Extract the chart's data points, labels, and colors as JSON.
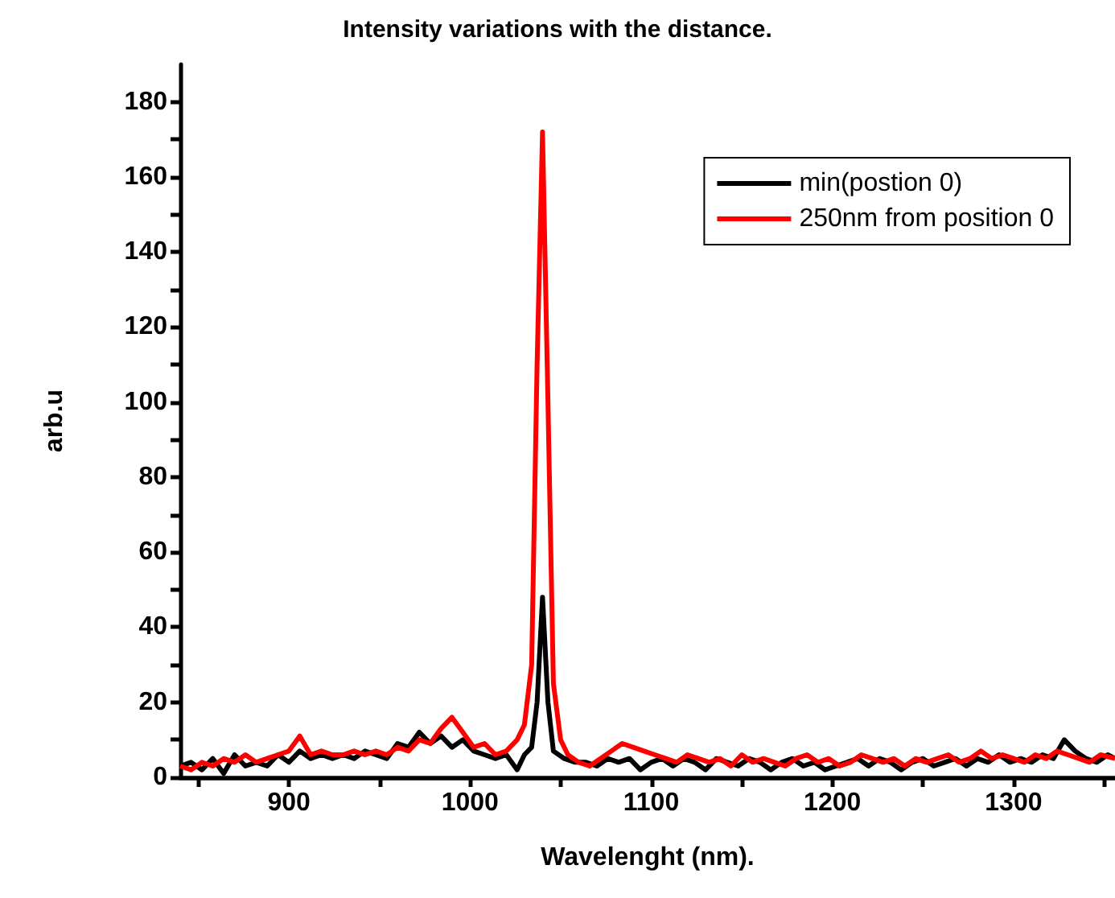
{
  "chart_data": {
    "type": "line",
    "title": "Intensity variations with the distance.",
    "xlabel": "Wavelenght (nm).",
    "ylabel": "arb.u",
    "xlim": [
      840,
      1356
    ],
    "ylim": [
      0,
      190
    ],
    "xticks": [
      {
        "value": 850,
        "label": null
      },
      900,
      {
        "value": 950,
        "label": null
      },
      1000,
      {
        "value": 1050,
        "label": null
      },
      1100,
      {
        "value": 1150,
        "label": null
      },
      1200,
      {
        "value": 1250,
        "label": null
      },
      1300,
      {
        "value": 1350,
        "label": null
      }
    ],
    "yticks": [
      0,
      {
        "value": 10,
        "label": null
      },
      20,
      {
        "value": 30,
        "label": null
      },
      40,
      {
        "value": 50,
        "label": null
      },
      60,
      {
        "value": 70,
        "label": null
      },
      80,
      {
        "value": 90,
        "label": null
      },
      100,
      {
        "value": 110,
        "label": null
      },
      120,
      {
        "value": 130,
        "label": null
      },
      140,
      {
        "value": 150,
        "label": null
      },
      160,
      {
        "value": 170,
        "label": null
      },
      180
    ],
    "grid": false,
    "legend": "top right",
    "marker": "none",
    "line_style": "solid",
    "series": [
      {
        "name": "min(postion 0)",
        "color": "#000000",
        "x": [
          840,
          846,
          852,
          858,
          864,
          870,
          876,
          882,
          888,
          894,
          900,
          906,
          912,
          918,
          924,
          930,
          936,
          942,
          948,
          954,
          960,
          966,
          972,
          978,
          984,
          990,
          996,
          1002,
          1008,
          1014,
          1020,
          1026,
          1030,
          1034,
          1037,
          1040,
          1043,
          1046,
          1052,
          1058,
          1064,
          1070,
          1076,
          1082,
          1088,
          1094,
          1100,
          1106,
          1112,
          1118,
          1124,
          1130,
          1136,
          1142,
          1148,
          1154,
          1160,
          1166,
          1172,
          1178,
          1184,
          1190,
          1196,
          1202,
          1208,
          1214,
          1220,
          1226,
          1232,
          1238,
          1244,
          1250,
          1256,
          1262,
          1268,
          1274,
          1280,
          1286,
          1292,
          1298,
          1304,
          1310,
          1316,
          1322,
          1328,
          1334,
          1340,
          1346,
          1352,
          1356
        ],
        "values": [
          3,
          4,
          2,
          5,
          1,
          6,
          3,
          4,
          3,
          6,
          4,
          7,
          5,
          6,
          5,
          6,
          5,
          7,
          6,
          5,
          9,
          8,
          12,
          9,
          11,
          8,
          10,
          7,
          6,
          5,
          6,
          2,
          6,
          8,
          20,
          48,
          20,
          7,
          5,
          4,
          4,
          3,
          5,
          4,
          5,
          2,
          4,
          5,
          3,
          5,
          4,
          2,
          5,
          4,
          3,
          5,
          4,
          2,
          4,
          5,
          3,
          4,
          2,
          3,
          4,
          5,
          3,
          5,
          4,
          2,
          4,
          5,
          3,
          4,
          5,
          3,
          5,
          4,
          6,
          4,
          5,
          4,
          6,
          5,
          10,
          7,
          5,
          4,
          6,
          5
        ]
      },
      {
        "name": "250nm from position 0",
        "color": "#ff0000",
        "x": [
          840,
          846,
          852,
          858,
          864,
          870,
          876,
          882,
          888,
          894,
          900,
          906,
          912,
          918,
          924,
          930,
          936,
          942,
          948,
          954,
          960,
          966,
          972,
          978,
          984,
          990,
          996,
          1002,
          1008,
          1014,
          1020,
          1026,
          1030,
          1034,
          1037,
          1040,
          1043,
          1046,
          1050,
          1054,
          1060,
          1066,
          1072,
          1078,
          1084,
          1090,
          1096,
          1102,
          1108,
          1114,
          1120,
          1126,
          1132,
          1138,
          1144,
          1150,
          1156,
          1162,
          1168,
          1174,
          1180,
          1186,
          1192,
          1198,
          1204,
          1210,
          1216,
          1222,
          1228,
          1234,
          1240,
          1246,
          1252,
          1258,
          1264,
          1270,
          1276,
          1282,
          1288,
          1294,
          1300,
          1306,
          1312,
          1318,
          1324,
          1330,
          1336,
          1342,
          1348,
          1356
        ],
        "values": [
          3,
          2,
          4,
          3,
          5,
          4,
          6,
          4,
          5,
          6,
          7,
          11,
          6,
          7,
          6,
          6,
          7,
          6,
          7,
          6,
          8,
          7,
          10,
          9,
          13,
          16,
          12,
          8,
          9,
          6,
          7,
          10,
          14,
          30,
          110,
          172,
          100,
          25,
          10,
          6,
          4,
          3,
          5,
          7,
          9,
          8,
          7,
          6,
          5,
          4,
          6,
          5,
          4,
          5,
          3,
          6,
          4,
          5,
          4,
          3,
          5,
          6,
          4,
          5,
          3,
          4,
          6,
          5,
          4,
          5,
          3,
          5,
          4,
          5,
          6,
          4,
          5,
          7,
          5,
          6,
          5,
          4,
          6,
          5,
          7,
          6,
          5,
          4,
          6,
          5
        ]
      }
    ]
  }
}
